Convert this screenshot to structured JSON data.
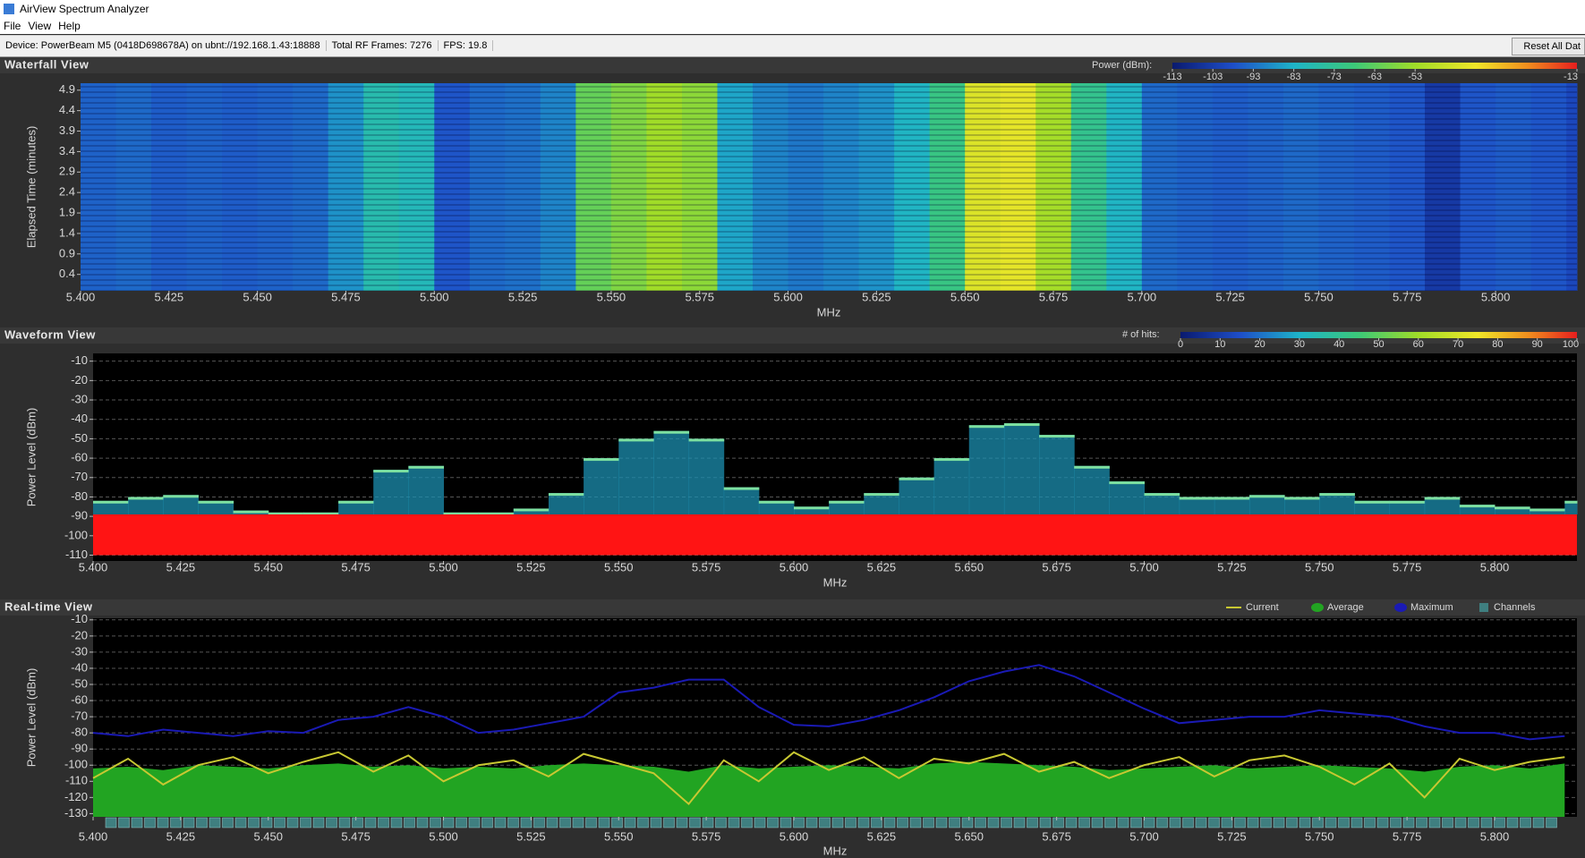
{
  "window": {
    "title": "AirView Spectrum Analyzer",
    "menu": [
      "File",
      "View",
      "Help"
    ],
    "status": [
      "Device: PowerBeam M5 (0418D698678A) on ubnt://192.168.1.43:18888",
      "Total RF Frames: 7276",
      "FPS: 19.8"
    ],
    "button": "Reset All Dat"
  },
  "chart_data": [
    {
      "type": "heatmap",
      "title": "Waterfall View",
      "xlabel": "MHz",
      "ylabel": "Elapsed Time (minutes)",
      "x": [
        5.4,
        5.41,
        5.42,
        5.43,
        5.44,
        5.45,
        5.46,
        5.47,
        5.48,
        5.49,
        5.5,
        5.51,
        5.52,
        5.53,
        5.54,
        5.55,
        5.56,
        5.57,
        5.58,
        5.59,
        5.6,
        5.61,
        5.62,
        5.63,
        5.64,
        5.65,
        5.66,
        5.67,
        5.68,
        5.69,
        5.7,
        5.71,
        5.72,
        5.73,
        5.74,
        5.75,
        5.76,
        5.77,
        5.78,
        5.79,
        5.8,
        5.81,
        5.82
      ],
      "values": [
        -95,
        -94,
        -96,
        -95,
        -96,
        -95,
        -94,
        -88,
        -78,
        -80,
        -97,
        -94,
        -93,
        -90,
        -62,
        -58,
        -53,
        -56,
        -85,
        -90,
        -92,
        -90,
        -88,
        -82,
        -70,
        -42,
        -40,
        -52,
        -72,
        -82,
        -94,
        -95,
        -96,
        -95,
        -94,
        -95,
        -96,
        -97,
        -104,
        -97,
        -96,
        -97,
        -100
      ],
      "xlim": [
        5.4,
        5.823
      ],
      "ylim": [
        0,
        5.07
      ],
      "xticks": [
        {
          "value": 5.4,
          "label": "5.400"
        },
        {
          "value": 5.425,
          "label": "5.425"
        },
        {
          "value": 5.45,
          "label": "5.450"
        },
        {
          "value": 5.475,
          "label": "5.475"
        },
        {
          "value": 5.5,
          "label": "5.500"
        },
        {
          "value": 5.525,
          "label": "5.525"
        },
        {
          "value": 5.55,
          "label": "5.550"
        },
        {
          "value": 5.575,
          "label": "5.575"
        },
        {
          "value": 5.6,
          "label": "5.600"
        },
        {
          "value": 5.625,
          "label": "5.625"
        },
        {
          "value": 5.65,
          "label": "5.650"
        },
        {
          "value": 5.675,
          "label": "5.675"
        },
        {
          "value": 5.7,
          "label": "5.700"
        },
        {
          "value": 5.725,
          "label": "5.725"
        },
        {
          "value": 5.75,
          "label": "5.750"
        },
        {
          "value": 5.775,
          "label": "5.775"
        },
        {
          "value": 5.8,
          "label": "5.800"
        }
      ],
      "yticks": [
        0.4,
        0.9,
        1.4,
        1.9,
        2.4,
        2.9,
        3.4,
        3.9,
        4.4,
        4.9
      ],
      "colorbar": {
        "label": "Power (dBm):",
        "lim": [
          -113,
          -13
        ],
        "ticks": [
          -113,
          -103,
          -93,
          -83,
          -73,
          -63,
          -53,
          -13
        ]
      }
    },
    {
      "type": "density",
      "title": "Waveform View",
      "xlabel": "MHz",
      "ylabel": "Power Level (dBm)",
      "x": [
        5.4,
        5.41,
        5.42,
        5.43,
        5.44,
        5.45,
        5.46,
        5.47,
        5.48,
        5.49,
        5.5,
        5.51,
        5.52,
        5.53,
        5.54,
        5.55,
        5.56,
        5.57,
        5.58,
        5.59,
        5.6,
        5.61,
        5.62,
        5.63,
        5.64,
        5.65,
        5.66,
        5.67,
        5.68,
        5.69,
        5.7,
        5.71,
        5.72,
        5.73,
        5.74,
        5.75,
        5.76,
        5.77,
        5.78,
        5.79,
        5.8,
        5.81,
        5.82
      ],
      "signal_top": [
        -82,
        -80,
        -79,
        -82,
        -87,
        -88,
        -88,
        -82,
        -66,
        -64,
        -88,
        -88,
        -86,
        -78,
        -60,
        -50,
        -46,
        -50,
        -75,
        -82,
        -85,
        -82,
        -78,
        -70,
        -60,
        -43,
        -42,
        -48,
        -64,
        -72,
        -78,
        -80,
        -80,
        -79,
        -80,
        -78,
        -82,
        -82,
        -80,
        -84,
        -85,
        -86,
        -82
      ],
      "noise_band": [
        -110,
        -89
      ],
      "signal_color": "#1c8fb0",
      "noise_color": "#ff1414",
      "xlim": [
        5.4,
        5.8235
      ],
      "ylim": [
        -113,
        -6
      ],
      "xticks": [
        {
          "value": 5.4,
          "label": "5.400"
        },
        {
          "value": 5.425,
          "label": "5.425"
        },
        {
          "value": 5.45,
          "label": "5.450"
        },
        {
          "value": 5.475,
          "label": "5.475"
        },
        {
          "value": 5.5,
          "label": "5.500"
        },
        {
          "value": 5.525,
          "label": "5.525"
        },
        {
          "value": 5.55,
          "label": "5.550"
        },
        {
          "value": 5.575,
          "label": "5.575"
        },
        {
          "value": 5.6,
          "label": "5.600"
        },
        {
          "value": 5.625,
          "label": "5.625"
        },
        {
          "value": 5.65,
          "label": "5.650"
        },
        {
          "value": 5.675,
          "label": "5.675"
        },
        {
          "value": 5.7,
          "label": "5.700"
        },
        {
          "value": 5.725,
          "label": "5.725"
        },
        {
          "value": 5.75,
          "label": "5.750"
        },
        {
          "value": 5.775,
          "label": "5.775"
        },
        {
          "value": 5.8,
          "label": "5.800"
        }
      ],
      "yticks": [
        -10,
        -20,
        -30,
        -40,
        -50,
        -60,
        -70,
        -80,
        -90,
        -100,
        -110
      ],
      "grid": true,
      "colorbar": {
        "label": "# of hits:",
        "lim": [
          0,
          100
        ],
        "ticks": [
          0,
          10,
          20,
          30,
          40,
          50,
          60,
          70,
          80,
          90,
          100
        ]
      }
    },
    {
      "type": "line",
      "title": "Real-time View",
      "xlabel": "MHz",
      "ylabel": "Power Level (dBm)",
      "x": [
        5.4,
        5.41,
        5.42,
        5.43,
        5.44,
        5.45,
        5.46,
        5.47,
        5.48,
        5.49,
        5.5,
        5.51,
        5.52,
        5.53,
        5.54,
        5.55,
        5.56,
        5.57,
        5.58,
        5.59,
        5.6,
        5.61,
        5.62,
        5.63,
        5.64,
        5.65,
        5.66,
        5.67,
        5.68,
        5.69,
        5.7,
        5.71,
        5.72,
        5.73,
        5.74,
        5.75,
        5.76,
        5.77,
        5.78,
        5.79,
        5.8,
        5.81,
        5.82
      ],
      "series": [
        {
          "name": "Current",
          "color": "#c8c832",
          "values": [
            -108,
            -96,
            -112,
            -100,
            -95,
            -105,
            -98,
            -92,
            -104,
            -94,
            -110,
            -100,
            -97,
            -107,
            -93,
            -99,
            -105,
            -124,
            -97,
            -110,
            -92,
            -103,
            -95,
            -108,
            -96,
            -99,
            -93,
            -104,
            -98,
            -108,
            -100,
            -95,
            -107,
            -97,
            -94,
            -101,
            -112,
            -99,
            -120,
            -96,
            -103,
            -98,
            -95
          ]
        },
        {
          "name": "Average",
          "color": "#22a422",
          "values": [
            -102,
            -101,
            -103,
            -100,
            -101,
            -102,
            -100,
            -99,
            -101,
            -100,
            -102,
            -101,
            -102,
            -100,
            -99,
            -100,
            -101,
            -104,
            -100,
            -102,
            -101,
            -100,
            -101,
            -102,
            -99,
            -98,
            -99,
            -100,
            -101,
            -103,
            -102,
            -101,
            -100,
            -102,
            -101,
            -100,
            -101,
            -102,
            -104,
            -101,
            -100,
            -102,
            -99
          ]
        },
        {
          "name": "Maximum",
          "color": "#1a1ab4",
          "values": [
            -80,
            -82,
            -78,
            -80,
            -82,
            -79,
            -80,
            -72,
            -70,
            -64,
            -70,
            -80,
            -78,
            -74,
            -70,
            -55,
            -52,
            -47,
            -47,
            -64,
            -75,
            -76,
            -72,
            -66,
            -58,
            -48,
            -42,
            -38,
            -45,
            -55,
            -65,
            -74,
            -72,
            -70,
            -70,
            -66,
            -68,
            -70,
            -76,
            -80,
            -80,
            -84,
            -82
          ]
        },
        {
          "name": "Channels",
          "color": "#3f7f80"
        }
      ],
      "xlim": [
        5.4,
        5.8235
      ],
      "ylim": [
        -132,
        -9
      ],
      "xticks": [
        {
          "value": 5.4,
          "label": "5.400"
        },
        {
          "value": 5.425,
          "label": "5.425"
        },
        {
          "value": 5.45,
          "label": "5.450"
        },
        {
          "value": 5.475,
          "label": "5.475"
        },
        {
          "value": 5.5,
          "label": "5.500"
        },
        {
          "value": 5.525,
          "label": "5.525"
        },
        {
          "value": 5.55,
          "label": "5.550"
        },
        {
          "value": 5.575,
          "label": "5.575"
        },
        {
          "value": 5.6,
          "label": "5.600"
        },
        {
          "value": 5.625,
          "label": "5.625"
        },
        {
          "value": 5.65,
          "label": "5.650"
        },
        {
          "value": 5.675,
          "label": "5.675"
        },
        {
          "value": 5.7,
          "label": "5.700"
        },
        {
          "value": 5.725,
          "label": "5.725"
        },
        {
          "value": 5.75,
          "label": "5.750"
        },
        {
          "value": 5.775,
          "label": "5.775"
        },
        {
          "value": 5.8,
          "label": "5.800"
        }
      ],
      "yticks": [
        -10,
        -20,
        -30,
        -40,
        -50,
        -60,
        -70,
        -80,
        -90,
        -100,
        -110,
        -120,
        -130
      ],
      "grid": true
    }
  ]
}
